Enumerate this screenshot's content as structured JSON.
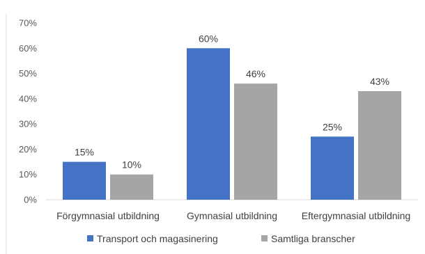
{
  "chart_data": {
    "type": "bar",
    "categories": [
      "Förgymnasial utbildning",
      "Gymnasial utbildning",
      "Eftergymnasial utbildning"
    ],
    "series": [
      {
        "name": "Transport och magasinering",
        "values": [
          15,
          60,
          25
        ],
        "color": "#4472C4"
      },
      {
        "name": "Samtliga branscher",
        "values": [
          10,
          46,
          43
        ],
        "color": "#A5A5A5"
      }
    ],
    "data_labels": [
      [
        "15%",
        "60%",
        "25%"
      ],
      [
        "10%",
        "46%",
        "43%"
      ]
    ],
    "y_ticks": [
      "0%",
      "10%",
      "20%",
      "30%",
      "40%",
      "50%",
      "60%",
      "70%"
    ],
    "ylim": [
      0,
      70
    ],
    "title": "",
    "xlabel": "",
    "ylabel": "",
    "grid": false,
    "legend_position": "bottom"
  }
}
